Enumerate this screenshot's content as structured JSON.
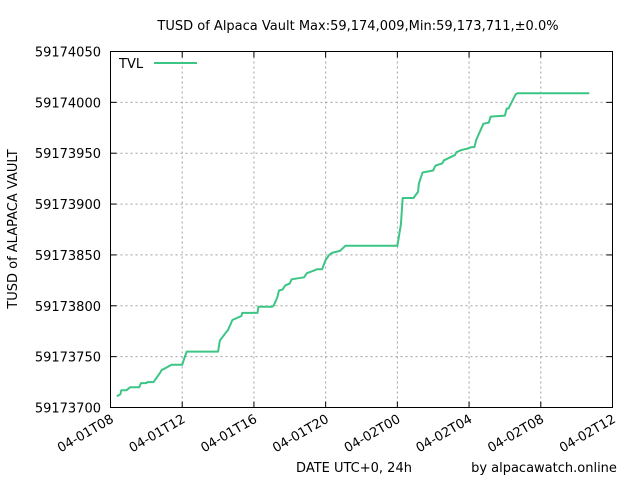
{
  "chart_data": {
    "type": "line",
    "title": "TUSD of Alpaca Vault Max:59,174,009,Min:59,173,711,±0.0%",
    "xlabel": "DATE UTC+0, 24h",
    "ylabel": "TUSD of ALAPACA VAULT",
    "credit": "by alpacawatch.online",
    "grid": true,
    "legend_position": "top-left",
    "line_color": "#3cc584",
    "ylim": [
      59173700,
      59174050
    ],
    "xlim": [
      0,
      28
    ],
    "y_ticks": [
      59173700,
      59173750,
      59173800,
      59173850,
      59173900,
      59173950,
      59174000,
      59174050
    ],
    "y_tick_labels": [
      "59173700",
      "59173750",
      "59173800",
      "59173850",
      "59173900",
      "59173950",
      "59174000",
      "59174050"
    ],
    "x_ticks": [
      0,
      4,
      8,
      12,
      16,
      20,
      24,
      28
    ],
    "x_tick_labels": [
      "04-01T08",
      "04-01T12",
      "04-01T16",
      "04-01T20",
      "04-02T00",
      "04-02T04",
      "04-02T08",
      "04-02T12"
    ],
    "series": [
      {
        "name": "TVL",
        "x": [
          0.35,
          0.55,
          0.6,
          0.9,
          1.1,
          1.6,
          1.7,
          2.0,
          2.05,
          2.4,
          2.8,
          2.85,
          3.0,
          3.4,
          4.0,
          4.15,
          4.25,
          6.0,
          6.1,
          6.5,
          6.55,
          6.7,
          6.8,
          7.3,
          7.35,
          8.2,
          8.25,
          9.0,
          9.1,
          9.3,
          9.4,
          9.6,
          9.75,
          10.0,
          10.1,
          10.8,
          10.95,
          11.4,
          11.5,
          11.8,
          12.0,
          12.2,
          12.35,
          12.8,
          13.1,
          16.0,
          16.1,
          16.2,
          16.3,
          16.9,
          17.15,
          17.2,
          17.4,
          18.0,
          18.1,
          18.15,
          18.5,
          18.6,
          19.2,
          19.3,
          19.55,
          20.0,
          20.15,
          20.3,
          20.4,
          20.8,
          21.1,
          21.2,
          22.0,
          22.1,
          22.2,
          22.6,
          22.7,
          23.0,
          23.1,
          23.2,
          24.0,
          24.1,
          24.55,
          24.6,
          24.9,
          25.1,
          25.2,
          25.5,
          25.6,
          26.1,
          26.2,
          26.7
        ],
        "values": [
          59173711,
          59173713,
          59173717,
          59173717,
          59173720,
          59173720,
          59173724,
          59173724,
          59173725,
          59173725,
          59173735,
          59173737,
          59173738,
          59173742,
          59173742,
          59173750,
          59173755,
          59173755,
          59173766,
          59173775,
          59173776,
          59173782,
          59173786,
          59173790,
          59173793,
          59173793,
          59173799,
          59173799,
          59173800,
          59173808,
          59173815,
          59173816,
          59173820,
          59173822,
          59173826,
          59173828,
          59173832,
          59173835,
          59173836,
          59173836,
          59173845,
          59173850,
          59173852,
          59173854,
          59173859,
          59173859,
          59173870,
          59173880,
          59173906,
          59173906,
          59173912,
          59173920,
          59173931,
          59173933,
          59173937,
          59173938,
          59173940,
          59173943,
          59173948,
          59173951,
          59173953,
          59173955,
          59173956,
          59173956,
          59173963,
          59173979,
          59173980,
          59173986,
          59173987,
          59173994,
          59173994,
          59174008,
          59174009,
          59174009,
          59174009,
          59174009,
          59174009,
          59174009,
          59174009,
          59174009,
          59174009,
          59174009,
          59174009,
          59174009,
          59174009,
          59174009,
          59174009,
          59174009
        ]
      }
    ]
  }
}
